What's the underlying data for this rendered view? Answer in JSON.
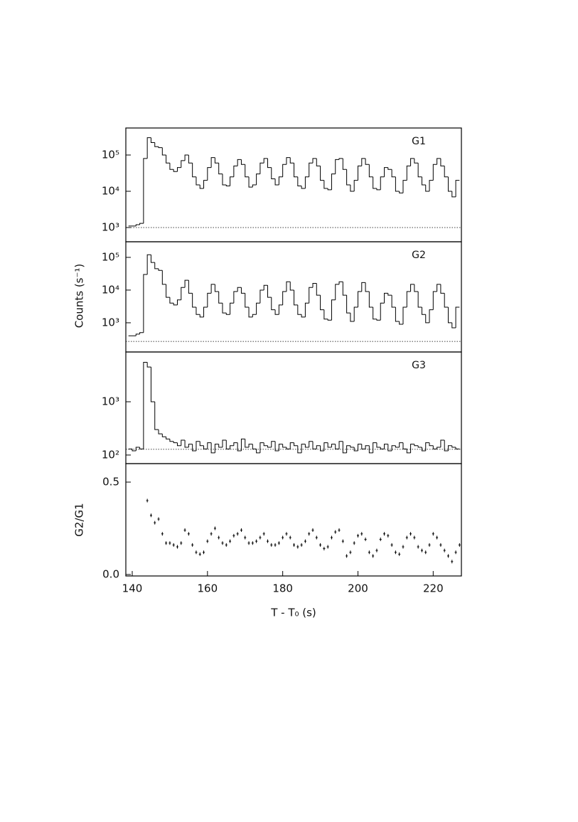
{
  "chart_data": [
    {
      "type": "histogram",
      "label": "G1",
      "log_y": true,
      "color": "#000000",
      "reference_line": 1000,
      "xlim": [
        138.3,
        227.5
      ],
      "ylim": [
        405,
        556000
      ],
      "yticks": [
        {
          "value": 1000,
          "label": "10³"
        },
        {
          "value": 10000,
          "label": "10⁴"
        },
        {
          "value": 100000,
          "label": "10⁵"
        }
      ],
      "bins": [
        139,
        140,
        141,
        142,
        143,
        144,
        145,
        146,
        147,
        148,
        149,
        150,
        151,
        152,
        153,
        154,
        155,
        156,
        157,
        158,
        159,
        160,
        161,
        162,
        163,
        164,
        165,
        166,
        167,
        168,
        169,
        170,
        171,
        172,
        173,
        174,
        175,
        176,
        177,
        178,
        179,
        180,
        181,
        182,
        183,
        184,
        185,
        186,
        187,
        188,
        189,
        190,
        191,
        192,
        193,
        194,
        195,
        196,
        197,
        198,
        199,
        200,
        201,
        202,
        203,
        204,
        205,
        206,
        207,
        208,
        209,
        210,
        211,
        212,
        213,
        214,
        215,
        216,
        217,
        218,
        219,
        220,
        221,
        222,
        223,
        224,
        225,
        226,
        227
      ],
      "values": [
        1100,
        1100,
        1200,
        1300,
        80000,
        300000,
        220000,
        170000,
        160000,
        100000,
        60000,
        40000,
        35000,
        45000,
        70000,
        100000,
        60000,
        25000,
        15000,
        12000,
        20000,
        45000,
        85000,
        60000,
        30000,
        15000,
        14000,
        25000,
        50000,
        75000,
        55000,
        25000,
        13000,
        15000,
        30000,
        60000,
        80000,
        45000,
        22000,
        15000,
        25000,
        55000,
        85000,
        60000,
        25000,
        14000,
        12000,
        25000,
        60000,
        80000,
        50000,
        20000,
        12000,
        11000,
        30000,
        75000,
        80000,
        40000,
        15000,
        10000,
        20000,
        50000,
        80000,
        55000,
        25000,
        12000,
        11000,
        25000,
        45000,
        40000,
        25000,
        10000,
        9000,
        20000,
        50000,
        80000,
        60000,
        25000,
        15000,
        10000,
        20000,
        55000,
        80000,
        50000,
        25000,
        10000,
        7000,
        20000
      ]
    },
    {
      "type": "histogram",
      "label": "G2",
      "y_label": "Counts (s⁻¹)",
      "log_y": true,
      "color": "#000000",
      "reference_line": 270,
      "xlim": [
        138.3,
        227.5
      ],
      "ylim": [
        128,
        300000
      ],
      "yticks": [
        {
          "value": 1000,
          "label": "10³"
        },
        {
          "value": 10000,
          "label": "10⁴"
        },
        {
          "value": 100000,
          "label": "10⁵"
        }
      ],
      "bins": [
        139,
        140,
        141,
        142,
        143,
        144,
        145,
        146,
        147,
        148,
        149,
        150,
        151,
        152,
        153,
        154,
        155,
        156,
        157,
        158,
        159,
        160,
        161,
        162,
        163,
        164,
        165,
        166,
        167,
        168,
        169,
        170,
        171,
        172,
        173,
        174,
        175,
        176,
        177,
        178,
        179,
        180,
        181,
        182,
        183,
        184,
        185,
        186,
        187,
        188,
        189,
        190,
        191,
        192,
        193,
        194,
        195,
        196,
        197,
        198,
        199,
        200,
        201,
        202,
        203,
        204,
        205,
        206,
        207,
        208,
        209,
        210,
        211,
        212,
        213,
        214,
        215,
        216,
        217,
        218,
        219,
        220,
        221,
        222,
        223,
        224,
        225,
        226,
        227
      ],
      "values": [
        400,
        400,
        450,
        500,
        30000,
        120000,
        70000,
        45000,
        40000,
        15000,
        6000,
        4000,
        3500,
        5000,
        12000,
        20000,
        8000,
        3000,
        1800,
        1500,
        3000,
        8000,
        15000,
        9000,
        4000,
        2000,
        1800,
        4000,
        9000,
        12000,
        8000,
        3000,
        1500,
        1800,
        4000,
        10000,
        14000,
        6000,
        2500,
        1800,
        3500,
        9000,
        18000,
        10000,
        3500,
        1800,
        1500,
        4000,
        12000,
        16000,
        7000,
        2500,
        1300,
        1200,
        5000,
        15000,
        18000,
        7000,
        2000,
        1100,
        3000,
        9000,
        17000,
        9000,
        3000,
        1300,
        1200,
        4000,
        8000,
        7000,
        3000,
        1100,
        900,
        3000,
        9000,
        15000,
        9000,
        3000,
        1800,
        1000,
        2500,
        9000,
        15000,
        8000,
        3000,
        1000,
        700,
        3000
      ]
    },
    {
      "type": "histogram",
      "label": "G3",
      "log_y": true,
      "color": "#000000",
      "reference_line": 128,
      "xlim": [
        138.3,
        227.5
      ],
      "ylim": [
        69,
        8600
      ],
      "yticks": [
        {
          "value": 100,
          "label": "10²"
        },
        {
          "value": 1000,
          "label": "10³"
        }
      ],
      "bins": [
        139,
        140,
        141,
        142,
        143,
        144,
        145,
        146,
        147,
        148,
        149,
        150,
        151,
        152,
        153,
        154,
        155,
        156,
        157,
        158,
        159,
        160,
        161,
        162,
        163,
        164,
        165,
        166,
        167,
        168,
        169,
        170,
        171,
        172,
        173,
        174,
        175,
        176,
        177,
        178,
        179,
        180,
        181,
        182,
        183,
        184,
        185,
        186,
        187,
        188,
        189,
        190,
        191,
        192,
        193,
        194,
        195,
        196,
        197,
        198,
        199,
        200,
        201,
        202,
        203,
        204,
        205,
        206,
        207,
        208,
        209,
        210,
        211,
        212,
        213,
        214,
        215,
        216,
        217,
        218,
        219,
        220,
        221,
        222,
        223,
        224,
        225,
        226,
        227
      ],
      "values": [
        130,
        120,
        140,
        130,
        5500,
        4500,
        1000,
        300,
        250,
        220,
        200,
        180,
        170,
        150,
        190,
        140,
        160,
        120,
        180,
        150,
        130,
        170,
        110,
        160,
        140,
        190,
        130,
        150,
        170,
        120,
        200,
        140,
        160,
        130,
        110,
        170,
        150,
        140,
        180,
        120,
        160,
        140,
        130,
        170,
        150,
        110,
        160,
        140,
        180,
        130,
        150,
        120,
        170,
        140,
        160,
        130,
        180,
        110,
        150,
        140,
        120,
        160,
        130,
        150,
        110,
        170,
        140,
        130,
        160,
        120,
        150,
        140,
        170,
        130,
        110,
        160,
        150,
        140,
        120,
        170,
        150,
        130,
        140,
        190,
        120,
        150,
        140,
        130
      ]
    },
    {
      "type": "scatter",
      "y_label": "G2/G1",
      "x_label": "T - T₀ (s)",
      "color": "#000000",
      "xlim": [
        138.3,
        227.5
      ],
      "ylim": [
        -0.008,
        0.6
      ],
      "xticks": [
        140,
        160,
        180,
        200,
        220
      ],
      "yticks": [
        {
          "value": 0,
          "label": "0.0"
        },
        0.5
      ],
      "x": [
        144,
        145,
        146,
        147,
        148,
        149,
        150,
        151,
        152,
        153,
        154,
        155,
        156,
        157,
        158,
        159,
        160,
        161,
        162,
        163,
        164,
        165,
        166,
        167,
        168,
        169,
        170,
        171,
        172,
        173,
        174,
        175,
        176,
        177,
        178,
        179,
        180,
        181,
        182,
        183,
        184,
        185,
        186,
        187,
        188,
        189,
        190,
        191,
        192,
        193,
        194,
        195,
        196,
        197,
        198,
        199,
        200,
        201,
        202,
        203,
        204,
        205,
        206,
        207,
        208,
        209,
        210,
        211,
        212,
        213,
        214,
        215,
        216,
        217,
        218,
        219,
        220,
        221,
        222,
        223,
        224,
        225,
        226,
        227
      ],
      "values": [
        0.4,
        0.32,
        0.28,
        0.3,
        0.22,
        0.17,
        0.17,
        0.16,
        0.15,
        0.17,
        0.24,
        0.22,
        0.16,
        0.12,
        0.11,
        0.12,
        0.18,
        0.22,
        0.25,
        0.2,
        0.17,
        0.16,
        0.18,
        0.21,
        0.22,
        0.24,
        0.2,
        0.17,
        0.17,
        0.18,
        0.2,
        0.22,
        0.18,
        0.16,
        0.16,
        0.17,
        0.2,
        0.22,
        0.2,
        0.16,
        0.15,
        0.16,
        0.18,
        0.22,
        0.24,
        0.2,
        0.16,
        0.14,
        0.15,
        0.2,
        0.23,
        0.24,
        0.18,
        0.1,
        0.12,
        0.17,
        0.21,
        0.22,
        0.19,
        0.12,
        0.1,
        0.13,
        0.19,
        0.22,
        0.21,
        0.16,
        0.12,
        0.11,
        0.15,
        0.2,
        0.22,
        0.2,
        0.15,
        0.13,
        0.12,
        0.16,
        0.22,
        0.2,
        0.16,
        0.13,
        0.1,
        0.07,
        0.12,
        0.16
      ]
    }
  ]
}
